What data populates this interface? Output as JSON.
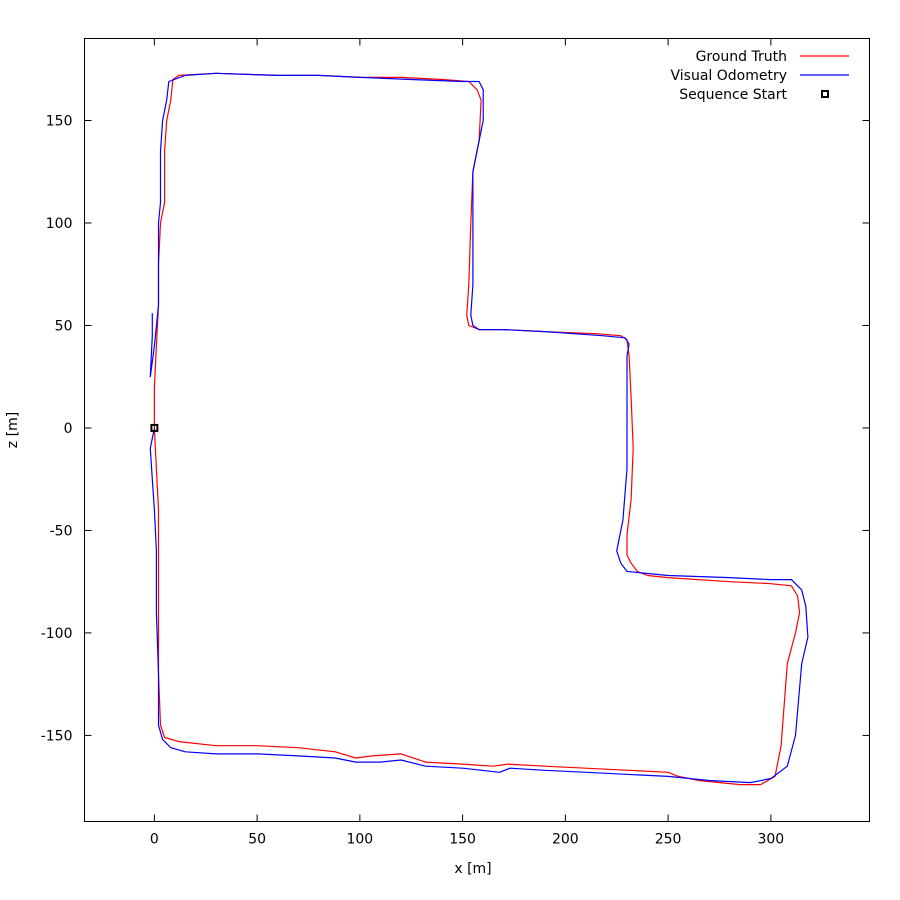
{
  "chart_data": {
    "type": "line",
    "xlabel": "x [m]",
    "ylabel": "z [m]",
    "xlim": [
      -34,
      348
    ],
    "ylim": [
      -192,
      190
    ],
    "xticks": [
      0,
      50,
      100,
      150,
      200,
      250,
      300
    ],
    "yticks": [
      -150,
      -100,
      -50,
      0,
      50,
      100,
      150
    ],
    "grid": false,
    "legend_position": "top-right",
    "series": [
      {
        "name": "Ground Truth",
        "color": "#ff0000",
        "points": [
          [
            0,
            0
          ],
          [
            1,
            -20
          ],
          [
            2,
            -40
          ],
          [
            2,
            -60
          ],
          [
            2,
            -90
          ],
          [
            2,
            -120
          ],
          [
            3,
            -145
          ],
          [
            5,
            -151
          ],
          [
            12,
            -153
          ],
          [
            30,
            -155
          ],
          [
            50,
            -155
          ],
          [
            70,
            -156
          ],
          [
            88,
            -158
          ],
          [
            98,
            -161
          ],
          [
            106,
            -160
          ],
          [
            120,
            -159
          ],
          [
            132,
            -163
          ],
          [
            150,
            -164
          ],
          [
            165,
            -165
          ],
          [
            172,
            -164
          ],
          [
            190,
            -165
          ],
          [
            210,
            -166
          ],
          [
            250,
            -168
          ],
          [
            255,
            -170
          ],
          [
            265,
            -172
          ],
          [
            285,
            -174
          ],
          [
            295,
            -174
          ],
          [
            302,
            -170
          ],
          [
            305,
            -155
          ],
          [
            308,
            -115
          ],
          [
            312,
            -100
          ],
          [
            314,
            -90
          ],
          [
            313,
            -82
          ],
          [
            310,
            -77
          ],
          [
            300,
            -76
          ],
          [
            280,
            -75
          ],
          [
            250,
            -73
          ],
          [
            240,
            -72
          ],
          [
            235,
            -70
          ],
          [
            232,
            -66
          ],
          [
            230,
            -62
          ],
          [
            230,
            -52
          ],
          [
            232,
            -35
          ],
          [
            233,
            -10
          ],
          [
            232,
            15
          ],
          [
            231,
            35
          ],
          [
            230,
            43
          ],
          [
            227,
            45
          ],
          [
            215,
            46
          ],
          [
            190,
            47
          ],
          [
            170,
            48
          ],
          [
            158,
            48
          ],
          [
            153,
            50
          ],
          [
            152,
            55
          ],
          [
            153,
            70
          ],
          [
            154,
            100
          ],
          [
            155,
            125
          ],
          [
            158,
            140
          ],
          [
            159,
            160
          ],
          [
            157,
            165
          ],
          [
            153,
            169
          ],
          [
            140,
            170
          ],
          [
            120,
            171
          ],
          [
            100,
            171
          ],
          [
            80,
            172
          ],
          [
            60,
            172
          ],
          [
            30,
            173
          ],
          [
            12,
            172
          ],
          [
            9,
            170
          ],
          [
            8,
            160
          ],
          [
            6,
            150
          ],
          [
            5,
            135
          ],
          [
            5,
            110
          ],
          [
            3,
            100
          ],
          [
            2,
            80
          ],
          [
            2,
            60
          ],
          [
            1,
            40
          ],
          [
            0,
            20
          ],
          [
            0,
            0
          ]
        ]
      },
      {
        "name": "Visual Odometry",
        "color": "#0000ff",
        "points": [
          [
            0,
            0
          ],
          [
            -2,
            -10
          ],
          [
            -1,
            -25
          ],
          [
            0,
            -40
          ],
          [
            1,
            -60
          ],
          [
            1,
            -90
          ],
          [
            2,
            -120
          ],
          [
            2,
            -145
          ],
          [
            4,
            -152
          ],
          [
            8,
            -156
          ],
          [
            15,
            -158
          ],
          [
            30,
            -159
          ],
          [
            50,
            -159
          ],
          [
            70,
            -160
          ],
          [
            88,
            -161
          ],
          [
            98,
            -163
          ],
          [
            110,
            -163
          ],
          [
            120,
            -162
          ],
          [
            132,
            -165
          ],
          [
            150,
            -166
          ],
          [
            168,
            -168
          ],
          [
            173,
            -166
          ],
          [
            190,
            -167
          ],
          [
            210,
            -168
          ],
          [
            250,
            -170
          ],
          [
            270,
            -172
          ],
          [
            290,
            -173
          ],
          [
            300,
            -171
          ],
          [
            308,
            -165
          ],
          [
            312,
            -150
          ],
          [
            315,
            -115
          ],
          [
            318,
            -102
          ],
          [
            317,
            -87
          ],
          [
            315,
            -79
          ],
          [
            310,
            -74
          ],
          [
            300,
            -74
          ],
          [
            280,
            -73
          ],
          [
            250,
            -72
          ],
          [
            240,
            -71
          ],
          [
            230,
            -70
          ],
          [
            227,
            -66
          ],
          [
            225,
            -60
          ],
          [
            228,
            -45
          ],
          [
            230,
            -20
          ],
          [
            230,
            10
          ],
          [
            230,
            35
          ],
          [
            231,
            41
          ],
          [
            229,
            44
          ],
          [
            218,
            45
          ],
          [
            190,
            47
          ],
          [
            170,
            48
          ],
          [
            158,
            48
          ],
          [
            155,
            50
          ],
          [
            154,
            55
          ],
          [
            155,
            70
          ],
          [
            155,
            100
          ],
          [
            155,
            125
          ],
          [
            157,
            135
          ],
          [
            160,
            150
          ],
          [
            160,
            165
          ],
          [
            158,
            169
          ],
          [
            150,
            169
          ],
          [
            125,
            170
          ],
          [
            100,
            171
          ],
          [
            80,
            172
          ],
          [
            60,
            172
          ],
          [
            30,
            173
          ],
          [
            15,
            172
          ],
          [
            7,
            169
          ],
          [
            6,
            160
          ],
          [
            4,
            150
          ],
          [
            3,
            135
          ],
          [
            3,
            110
          ],
          [
            2,
            100
          ],
          [
            2,
            80
          ],
          [
            2,
            60
          ],
          [
            0,
            40
          ],
          [
            -2,
            25
          ],
          [
            -1,
            45
          ],
          [
            -1,
            56
          ]
        ]
      }
    ],
    "markers": [
      {
        "name": "Sequence Start",
        "shape": "square",
        "color": "#000000",
        "x": 0,
        "y": 0
      }
    ]
  }
}
